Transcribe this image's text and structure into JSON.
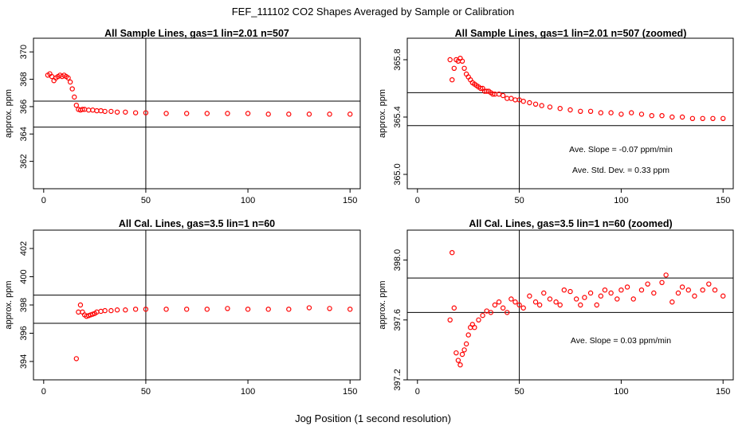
{
  "page": {
    "title": "FEF_111102  CO2 Shapes Averaged by Sample or Calibration",
    "xlabel": "Jog Position (1 second resolution)"
  },
  "chart_data": [
    {
      "type": "scatter",
      "title": "All Sample Lines, gas=1 lin=2.01 n=507",
      "ylabel": "approx. ppm",
      "xlim": [
        -5,
        155
      ],
      "ylim": [
        360,
        371
      ],
      "xticks": [
        0,
        50,
        100,
        150
      ],
      "yticks": [
        362,
        364,
        366,
        368,
        370
      ],
      "vline": 50,
      "hlines": [
        364.5,
        366.4
      ],
      "annotations": [],
      "x": [
        2,
        3,
        4,
        5,
        6,
        7,
        8,
        9,
        10,
        11,
        12,
        13,
        14,
        15,
        16,
        17,
        18,
        19,
        20,
        22,
        24,
        26,
        28,
        30,
        33,
        36,
        40,
        45,
        50,
        60,
        70,
        80,
        90,
        100,
        110,
        120,
        130,
        140,
        150
      ],
      "y": [
        368.3,
        368.4,
        368.2,
        367.9,
        368.1,
        368.2,
        368.3,
        368.2,
        368.3,
        368.2,
        368.1,
        367.8,
        367.3,
        366.7,
        366.1,
        365.8,
        365.75,
        365.8,
        365.8,
        365.75,
        365.75,
        365.7,
        365.7,
        365.65,
        365.65,
        365.6,
        365.6,
        365.55,
        365.55,
        365.5,
        365.5,
        365.5,
        365.5,
        365.5,
        365.45,
        365.45,
        365.45,
        365.45,
        365.45
      ]
    },
    {
      "type": "scatter",
      "title": "All Sample Lines, gas=1 lin=2.01 n=507 (zoomed)",
      "ylabel": "approx. ppm",
      "xlim": [
        -5,
        155
      ],
      "ylim": [
        364.9,
        365.95
      ],
      "xticks": [
        0,
        50,
        100,
        150
      ],
      "yticks": [
        365.0,
        365.4,
        365.8
      ],
      "ytick_labels": [
        "365.0",
        "365.4",
        "365.8"
      ],
      "vline": 50,
      "hlines": [
        365.34,
        365.57
      ],
      "annotations": [
        "Ave. Slope =  -0.07  ppm/min",
        "Ave. Std. Dev. =  0.33  ppm"
      ],
      "x": [
        16,
        17,
        18,
        19,
        20,
        21,
        22,
        23,
        24,
        25,
        26,
        27,
        28,
        29,
        30,
        31,
        32,
        33,
        34,
        35,
        36,
        37,
        38,
        40,
        42,
        44,
        46,
        48,
        50,
        52,
        55,
        58,
        61,
        65,
        70,
        75,
        80,
        85,
        90,
        95,
        100,
        105,
        110,
        115,
        120,
        125,
        130,
        135,
        140,
        145,
        150
      ],
      "y": [
        365.8,
        365.66,
        365.74,
        365.8,
        365.79,
        365.81,
        365.79,
        365.74,
        365.7,
        365.68,
        365.66,
        365.64,
        365.63,
        365.62,
        365.61,
        365.6,
        365.6,
        365.58,
        365.58,
        365.58,
        365.57,
        365.56,
        365.56,
        365.56,
        365.55,
        365.53,
        365.53,
        365.52,
        365.52,
        365.51,
        365.5,
        365.49,
        365.48,
        365.47,
        365.46,
        365.45,
        365.44,
        365.44,
        365.43,
        365.43,
        365.42,
        365.43,
        365.42,
        365.41,
        365.41,
        365.4,
        365.4,
        365.39,
        365.39,
        365.39,
        365.39
      ]
    },
    {
      "type": "scatter",
      "title": "All Cal. Lines, gas=3.5 lin=1 n=60",
      "ylabel": "approx. ppm",
      "xlim": [
        -5,
        155
      ],
      "ylim": [
        392.7,
        403.3
      ],
      "xticks": [
        0,
        50,
        100,
        150
      ],
      "yticks": [
        394,
        396,
        398,
        400,
        402
      ],
      "vline": 50,
      "hlines": [
        396.7,
        398.7
      ],
      "annotations": [],
      "x": [
        16,
        17,
        18,
        19,
        20,
        21,
        22,
        23,
        24,
        25,
        26,
        28,
        30,
        33,
        36,
        40,
        45,
        50,
        60,
        70,
        80,
        90,
        100,
        110,
        120,
        130,
        140,
        150
      ],
      "y": [
        394.2,
        397.5,
        398.0,
        397.5,
        397.3,
        397.2,
        397.25,
        397.3,
        397.35,
        397.4,
        397.5,
        397.55,
        397.6,
        397.6,
        397.65,
        397.65,
        397.7,
        397.7,
        397.7,
        397.7,
        397.7,
        397.75,
        397.7,
        397.7,
        397.7,
        397.8,
        397.75,
        397.7
      ]
    },
    {
      "type": "scatter",
      "title": "All Cal. Lines, gas=3.5 lin=1 n=60 (zoomed)",
      "ylabel": "approx. ppm",
      "xlim": [
        -5,
        155
      ],
      "ylim": [
        397.2,
        398.2
      ],
      "xticks": [
        0,
        50,
        100,
        150
      ],
      "yticks": [
        397.2,
        397.6,
        398.0
      ],
      "ytick_labels": [
        "397.2",
        "397.6",
        "398.0"
      ],
      "vline": 50,
      "hlines": [
        397.65,
        397.88
      ],
      "annotations": [
        "Ave. Slope =  0.03  ppm/min"
      ],
      "x": [
        16,
        17,
        18,
        19,
        20,
        21,
        22,
        23,
        24,
        25,
        26,
        27,
        28,
        30,
        32,
        34,
        36,
        38,
        40,
        42,
        44,
        46,
        48,
        50,
        52,
        55,
        58,
        60,
        62,
        65,
        68,
        70,
        72,
        75,
        78,
        80,
        82,
        85,
        88,
        90,
        92,
        95,
        98,
        100,
        103,
        106,
        110,
        113,
        116,
        120,
        122,
        125,
        128,
        130,
        133,
        136,
        140,
        143,
        146,
        150
      ],
      "y": [
        397.6,
        398.05,
        397.68,
        397.38,
        397.33,
        397.3,
        397.37,
        397.4,
        397.44,
        397.5,
        397.55,
        397.57,
        397.55,
        397.6,
        397.63,
        397.66,
        397.65,
        397.7,
        397.72,
        397.68,
        397.65,
        397.74,
        397.72,
        397.7,
        397.68,
        397.76,
        397.72,
        397.7,
        397.78,
        397.74,
        397.72,
        397.7,
        397.8,
        397.79,
        397.74,
        397.7,
        397.75,
        397.78,
        397.7,
        397.76,
        397.8,
        397.78,
        397.74,
        397.8,
        397.82,
        397.74,
        397.8,
        397.84,
        397.78,
        397.85,
        397.9,
        397.72,
        397.78,
        397.82,
        397.8,
        397.76,
        397.8,
        397.84,
        397.8,
        397.76
      ]
    }
  ]
}
